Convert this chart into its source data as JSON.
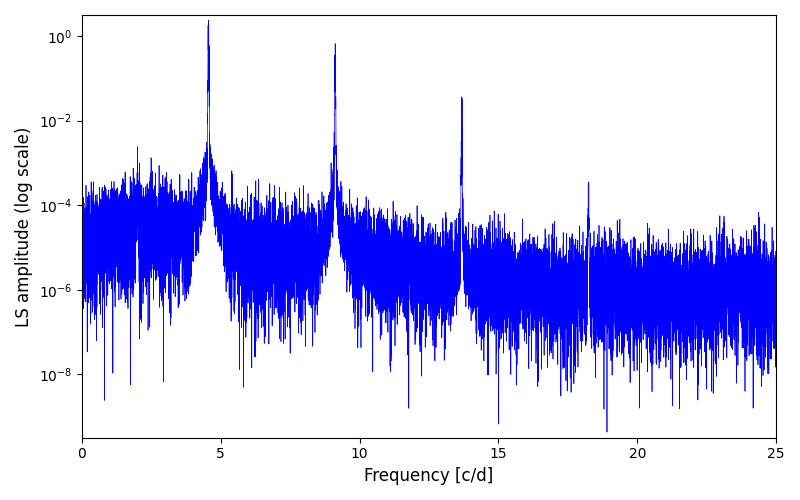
{
  "title": "",
  "xlabel": "Frequency [c/d]",
  "ylabel": "LS amplitude (log scale)",
  "line_color": "#0000ff",
  "line_width": 0.5,
  "xlim": [
    0,
    25
  ],
  "ylim_log": [
    -9.5,
    0.5
  ],
  "yscale": "log",
  "figsize": [
    8.0,
    5.0
  ],
  "dpi": 100,
  "freq_max": 25.0,
  "n_points": 15000,
  "harmonics": [
    4.56,
    9.12,
    13.68,
    18.24
  ],
  "harmonic_amplitudes": [
    0.85,
    0.18,
    0.007,
    0.00015
  ],
  "secondary_peaks": [
    [
      2.0,
      0.0002
    ]
  ],
  "noise_floor": 1.5e-06,
  "bg_color": "#ffffff"
}
